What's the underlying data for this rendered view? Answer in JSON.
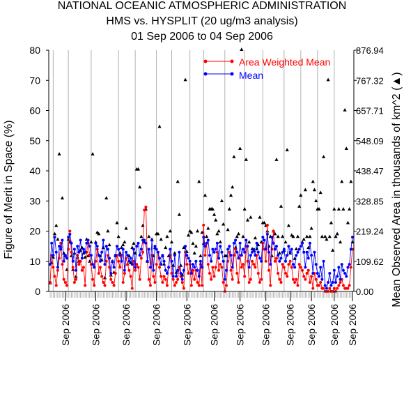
{
  "chart_data": {
    "type": "line",
    "title_lines": [
      "NATIONAL OCEANIC ATMOSPHERIC ADMINISTRATION",
      "HMS vs. HYSPLIT (20 ug/m3 analysis)",
      "01 Sep 2006 to 04 Sep 2006"
    ],
    "ylabel_left": "Figure of Merit in Space (%)",
    "ylabel_right": "Mean Observed Area in thousands of km^2 (▲)",
    "ylim_left": [
      0,
      80
    ],
    "yticks_left": [
      "0",
      "10",
      "20",
      "30",
      "40",
      "50",
      "60",
      "70",
      "80"
    ],
    "ylim_right": [
      0,
      876.94
    ],
    "yticks_right": [
      "0.00",
      "109.62",
      "219.24",
      "328.85",
      "438.47",
      "548.09",
      "657.71",
      "767.32",
      "876.94"
    ],
    "x_count": 200,
    "xtick_labels": [
      "Sep 2006",
      "Sep 2006",
      "Sep 2006",
      "Sep 2006",
      "Sep 2006",
      "Sep 2006",
      "Sep 2006",
      "Sep 2006",
      "Sep 2006",
      "Sep 2006",
      "Sep 2006",
      "Sep 2006"
    ],
    "xtick_label_index": [
      10,
      30,
      50,
      70,
      90,
      108,
      125,
      142,
      158,
      172,
      187,
      199
    ],
    "divider_index": [
      2,
      12,
      27,
      45,
      56,
      70,
      80,
      92,
      101,
      115,
      128,
      140,
      154,
      165,
      176,
      187
    ],
    "colors": {
      "awm": "#ff0000",
      "mean": "#0000ff",
      "area": "#000000"
    },
    "legend_position": "top-right",
    "series": [
      {
        "name": "Area Weighted Mean",
        "values": [
          3,
          12,
          8,
          5,
          2,
          7,
          11,
          16,
          9,
          4,
          3,
          2,
          14,
          20,
          13,
          8,
          3,
          4,
          12,
          9,
          10,
          7,
          8,
          2,
          13,
          16,
          12,
          9,
          4,
          2,
          10,
          14,
          6,
          8,
          5,
          3,
          2,
          10,
          12,
          8,
          4,
          3,
          2,
          6,
          12,
          10,
          8,
          12,
          3,
          6,
          11,
          9,
          7,
          5,
          1,
          10,
          7,
          9,
          8,
          4,
          11,
          13,
          27,
          28,
          10,
          4,
          2,
          12,
          5,
          3,
          9,
          13,
          8,
          5,
          3,
          5,
          4,
          2,
          8,
          12,
          6,
          4,
          2,
          3,
          4,
          8,
          5,
          3,
          1,
          13,
          9,
          6,
          9,
          2,
          7,
          4,
          7,
          3,
          2,
          9,
          2,
          22,
          12,
          16,
          9,
          6,
          4,
          8,
          5,
          8,
          13,
          7,
          9,
          8,
          3,
          0,
          2,
          10,
          13,
          7,
          4,
          12,
          14,
          6,
          3,
          12,
          8,
          9,
          5,
          15,
          10,
          3,
          4,
          10,
          9,
          8,
          12,
          6,
          3,
          4,
          16,
          14,
          10,
          22,
          7,
          2,
          14,
          20,
          10,
          11,
          6,
          4,
          3,
          9,
          8,
          6,
          5,
          9,
          10,
          8,
          4,
          3,
          4,
          2,
          9,
          8,
          7,
          5,
          4,
          6,
          7,
          3,
          5,
          1,
          6,
          4,
          2,
          2,
          3,
          1,
          1,
          0,
          0,
          0,
          1,
          0,
          0,
          1,
          0,
          1,
          2,
          3,
          4,
          2,
          1,
          1,
          1,
          2,
          8,
          14
        ]
      },
      {
        "name": "Mean",
        "values": [
          9,
          16,
          12,
          18,
          13,
          8,
          15,
          14,
          17,
          10,
          12,
          11,
          18,
          19,
          16,
          10,
          14,
          7,
          15,
          13,
          17,
          11,
          14,
          13,
          16,
          17,
          15,
          12,
          9,
          8,
          16,
          15,
          12,
          10,
          13,
          17,
          9,
          15,
          14,
          11,
          6,
          10,
          8,
          12,
          15,
          14,
          12,
          10,
          14,
          7,
          13,
          12,
          10,
          11,
          9,
          14,
          8,
          15,
          16,
          12,
          14,
          17,
          17,
          16,
          10,
          14,
          8,
          17,
          7,
          15,
          14,
          13,
          11,
          9,
          12,
          10,
          7,
          6,
          8,
          14,
          10,
          5,
          12,
          5,
          7,
          13,
          6,
          4,
          7,
          15,
          12,
          11,
          10,
          6,
          9,
          8,
          10,
          7,
          5,
          10,
          8,
          18,
          15,
          16,
          17,
          12,
          10,
          14,
          13,
          14,
          16,
          11,
          15,
          13,
          10,
          4,
          7,
          14,
          15,
          12,
          8,
          16,
          17,
          13,
          11,
          16,
          12,
          14,
          13,
          17,
          15,
          8,
          12,
          13,
          14,
          12,
          16,
          13,
          11,
          10,
          18,
          17,
          14,
          19,
          13,
          9,
          18,
          16,
          14,
          15,
          12,
          10,
          11,
          13,
          14,
          10,
          12,
          15,
          13,
          14,
          9,
          8,
          12,
          13,
          14,
          15,
          16,
          13,
          8,
          13,
          11,
          16,
          12,
          6,
          13,
          9,
          6,
          5,
          8,
          4,
          10,
          2,
          1,
          3,
          6,
          2,
          3,
          7,
          3,
          5,
          8,
          4,
          9,
          7,
          6,
          5,
          8,
          9,
          14,
          18
        ]
      },
      {
        "name": "Mean Observed Area",
        "values": [
          32,
          105,
          125,
          210,
          240,
          190,
          500,
          165,
          340,
          140,
          130,
          80,
          190,
          180,
          130,
          80,
          140,
          55,
          125,
          110,
          150,
          160,
          140,
          125,
          190,
          130,
          110,
          180,
          500,
          90,
          180,
          215,
          210,
          130,
          115,
          160,
          50,
          340,
          220,
          170,
          60,
          110,
          70,
          130,
          250,
          200,
          140,
          160,
          170,
          180,
          230,
          100,
          130,
          105,
          160,
          175,
          140,
          445,
          445,
          380,
          200,
          240,
          180,
          300,
          110,
          200,
          90,
          190,
          130,
          160,
          210,
          210,
          600,
          190,
          130,
          100,
          160,
          200,
          130,
          220,
          180,
          95,
          140,
          70,
          400,
          280,
          95,
          60,
          160,
          770,
          145,
          205,
          220,
          215,
          175,
          140,
          165,
          220,
          400,
          130,
          215,
          175,
          350,
          200,
          230,
          300,
          300,
          300,
          280,
          260,
          210,
          220,
          180,
          330,
          245,
          130,
          130,
          225,
          300,
          350,
          380,
          490,
          160,
          200,
          210,
          520,
          880,
          200,
          300,
          480,
          260,
          180,
          270,
          155,
          150,
          195,
          155,
          170,
          270,
          180,
          250,
          250,
          240,
          220,
          165,
          200,
          130,
          220,
          210,
          480,
          200,
          140,
          310,
          200,
          150,
          180,
          515,
          240,
          140,
          205,
          200,
          120,
          155,
          200,
          310,
          350,
          180,
          190,
          370,
          200,
          160,
          200,
          230,
          400,
          370,
          330,
          300,
          300,
          360,
          200,
          490,
          200,
          190,
          770,
          200,
          250,
          150,
          300,
          200,
          210,
          300,
          180,
          400,
          300,
          660,
          520,
          250,
          300,
          400,
          180
        ]
      }
    ]
  }
}
